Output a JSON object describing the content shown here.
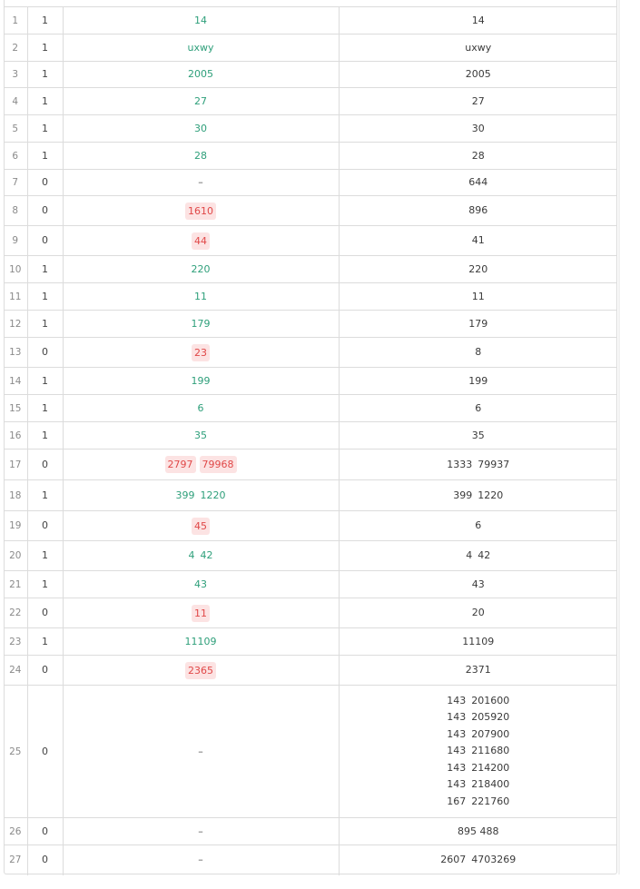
{
  "rows": [
    {
      "index": "1",
      "result": "1",
      "predicted": [
        "14"
      ],
      "correct": true,
      "gold": [
        "14"
      ]
    },
    {
      "index": "2",
      "result": "1",
      "predicted": [
        "uxwy"
      ],
      "correct": true,
      "gold": [
        "uxwy"
      ]
    },
    {
      "index": "3",
      "result": "1",
      "predicted": [
        "2005"
      ],
      "correct": true,
      "gold": [
        "2005"
      ]
    },
    {
      "index": "4",
      "result": "1",
      "predicted": [
        "27"
      ],
      "correct": true,
      "gold": [
        "27"
      ]
    },
    {
      "index": "5",
      "result": "1",
      "predicted": [
        "30"
      ],
      "correct": true,
      "gold": [
        "30"
      ]
    },
    {
      "index": "6",
      "result": "1",
      "predicted": [
        "28"
      ],
      "correct": true,
      "gold": [
        "28"
      ]
    },
    {
      "index": "7",
      "result": "0",
      "predicted": [],
      "correct": false,
      "gold": [
        "644"
      ]
    },
    {
      "index": "8",
      "result": "0",
      "predicted": [
        "1610"
      ],
      "correct": false,
      "gold": [
        "896"
      ]
    },
    {
      "index": "9",
      "result": "0",
      "predicted": [
        "44"
      ],
      "correct": false,
      "gold": [
        "41"
      ]
    },
    {
      "index": "10",
      "result": "1",
      "predicted": [
        "220"
      ],
      "correct": true,
      "gold": [
        "220"
      ]
    },
    {
      "index": "11",
      "result": "1",
      "predicted": [
        "11"
      ],
      "correct": true,
      "gold": [
        "11"
      ]
    },
    {
      "index": "12",
      "result": "1",
      "predicted": [
        "179"
      ],
      "correct": true,
      "gold": [
        "179"
      ]
    },
    {
      "index": "13",
      "result": "0",
      "predicted": [
        "23"
      ],
      "correct": false,
      "gold": [
        "8"
      ]
    },
    {
      "index": "14",
      "result": "1",
      "predicted": [
        "199"
      ],
      "correct": true,
      "gold": [
        "199"
      ]
    },
    {
      "index": "15",
      "result": "1",
      "predicted": [
        "6"
      ],
      "correct": true,
      "gold": [
        "6"
      ]
    },
    {
      "index": "16",
      "result": "1",
      "predicted": [
        "35"
      ],
      "correct": true,
      "gold": [
        "35"
      ]
    },
    {
      "index": "17",
      "result": "0",
      "predicted": [
        "2797",
        "79968"
      ],
      "correct": false,
      "gold": [
        "1333",
        "79937"
      ]
    },
    {
      "index": "18",
      "result": "1",
      "predicted": [
        "399",
        "1220"
      ],
      "correct": true,
      "gold": [
        "399",
        "1220"
      ]
    },
    {
      "index": "19",
      "result": "0",
      "predicted": [
        "45"
      ],
      "correct": false,
      "gold": [
        "6"
      ]
    },
    {
      "index": "20",
      "result": "1",
      "predicted": [
        "4",
        "42"
      ],
      "correct": true,
      "gold": [
        "4",
        "42"
      ]
    },
    {
      "index": "21",
      "result": "1",
      "predicted": [
        "43"
      ],
      "correct": true,
      "gold": [
        "43"
      ]
    },
    {
      "index": "22",
      "result": "0",
      "predicted": [
        "11"
      ],
      "correct": false,
      "gold": [
        "20"
      ]
    },
    {
      "index": "23",
      "result": "1",
      "predicted": [
        "11109"
      ],
      "correct": true,
      "gold": [
        "11109"
      ]
    },
    {
      "index": "24",
      "result": "0",
      "predicted": [
        "2365"
      ],
      "correct": false,
      "gold": [
        "2371"
      ]
    },
    {
      "index": "25",
      "result": "0",
      "predicted": [],
      "correct": false,
      "gold_lines": [
        [
          "143",
          "201600"
        ],
        [
          "143",
          "205920"
        ],
        [
          "143",
          "207900"
        ],
        [
          "143",
          "211680"
        ],
        [
          "143",
          "214200"
        ],
        [
          "143",
          "218400"
        ],
        [
          "167",
          "221760"
        ]
      ]
    },
    {
      "index": "26",
      "result": "0",
      "predicted": [],
      "correct": false,
      "gold": [
        "895 488"
      ]
    },
    {
      "index": "27",
      "result": "0",
      "predicted": [],
      "correct": false,
      "gold": [
        "2607",
        "4703269"
      ]
    }
  ],
  "empty_marker": "–",
  "colors": {
    "correct_text": "#2e9f7a",
    "wrong_text": "#e04848",
    "wrong_bg": "#fce3e3",
    "border": "#dcdcdc"
  }
}
